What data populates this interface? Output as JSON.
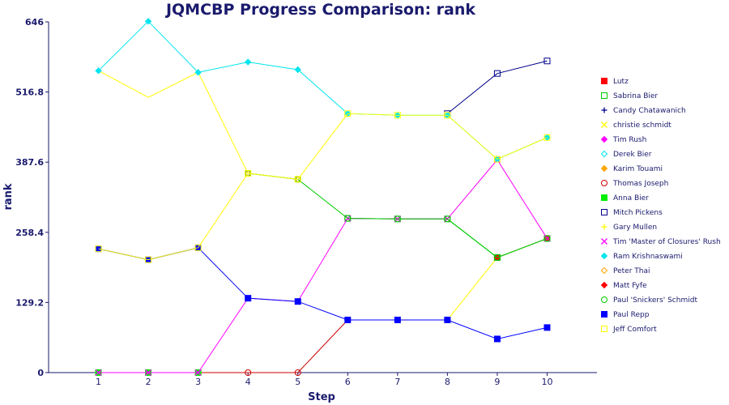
{
  "chart_data": {
    "type": "line",
    "title": "JQMCBP Progress Comparison: rank",
    "xlabel": "Step",
    "ylabel": "rank",
    "x": [
      1,
      2,
      3,
      4,
      5,
      6,
      7,
      8,
      9,
      10
    ],
    "xlim": [
      0,
      11
    ],
    "ylim": [
      0,
      646
    ],
    "yticks": [
      "0",
      "129.2",
      "258.4",
      "387.6",
      "516.8",
      "646"
    ],
    "legend_position": "right",
    "grid": false,
    "series": [
      {
        "name": "Lutz",
        "color": "#ff0000",
        "marker": "square-filled",
        "values": [
          null,
          null,
          null,
          null,
          null,
          null,
          null,
          null,
          212,
          247
        ]
      },
      {
        "name": "Sabrina Bier",
        "color": "#00cc00",
        "marker": "square-open",
        "values": [
          null,
          null,
          null,
          null,
          null,
          284,
          283,
          283,
          212,
          247
        ]
      },
      {
        "name": "Candy Chatawanich",
        "color": "#00008b",
        "marker": "plus",
        "values": [
          null,
          null,
          null,
          null,
          null,
          null,
          null,
          null,
          null,
          null
        ]
      },
      {
        "name": "christie schmidt",
        "color": "#ffff00",
        "marker": "x",
        "values": [
          null,
          null,
          null,
          null,
          null,
          null,
          null,
          null,
          null,
          null
        ]
      },
      {
        "name": "Tim Rush",
        "color": "#ff00ff",
        "marker": "diamond-filled",
        "values": [
          null,
          null,
          null,
          null,
          null,
          null,
          null,
          null,
          null,
          null
        ]
      },
      {
        "name": "Derek Bier",
        "color": "#00e5ee",
        "marker": "diamond-open",
        "values": [
          null,
          null,
          null,
          null,
          null,
          null,
          null,
          null,
          null,
          null
        ]
      },
      {
        "name": "Karim Touami",
        "color": "#ffa500",
        "marker": "diamond-filled",
        "values": [
          null,
          null,
          null,
          null,
          null,
          null,
          null,
          null,
          null,
          null
        ]
      },
      {
        "name": "Thomas Joseph",
        "color": "#cc0000",
        "marker": "circle-open",
        "values": [
          0,
          0,
          0,
          0,
          0,
          97,
          97,
          97,
          null,
          null
        ]
      },
      {
        "name": "Anna Bier",
        "color": "#00ee00",
        "marker": "square-filled",
        "values": [
          0,
          0,
          0,
          null,
          null,
          null,
          null,
          null,
          null,
          null
        ]
      },
      {
        "name": "Mitch Pickens",
        "color": "#00008b",
        "marker": "square-open",
        "values": [
          null,
          null,
          null,
          null,
          null,
          null,
          null,
          477,
          551,
          574
        ]
      },
      {
        "name": "Gary Mullen",
        "color": "#ffff00",
        "marker": "plus",
        "values": [
          null,
          null,
          null,
          null,
          null,
          null,
          null,
          null,
          null,
          null
        ]
      },
      {
        "name": "Tim 'Master of Closures' Rush",
        "color": "#ff00ff",
        "marker": "x",
        "values": [
          0,
          0,
          0,
          137,
          131,
          284,
          283,
          283,
          392,
          247
        ]
      },
      {
        "name": "Ram Krishnaswami",
        "color": "#00e5ee",
        "marker": "diamond-filled",
        "values": [
          556,
          647,
          553,
          572,
          558,
          477,
          474,
          474,
          393,
          433
        ]
      },
      {
        "name": "Peter Thai",
        "color": "#ffa500",
        "marker": "diamond-open",
        "values": [
          null,
          null,
          null,
          367,
          356,
          null,
          null,
          null,
          null,
          null
        ]
      },
      {
        "name": "Matt Fyfe",
        "color": "#ff0000",
        "marker": "diamond-filled",
        "values": [
          null,
          null,
          null,
          null,
          null,
          null,
          null,
          null,
          null,
          null
        ]
      },
      {
        "name": "Paul 'Snickers' Schmidt",
        "color": "#00cc00",
        "marker": "circle-open",
        "values": [
          null,
          null,
          null,
          367,
          356,
          284,
          283,
          283,
          212,
          247
        ]
      },
      {
        "name": "Paul Repp",
        "color": "#0000ff",
        "marker": "square-filled",
        "values": [
          228,
          208,
          230,
          137,
          131,
          97,
          97,
          97,
          62,
          83
        ]
      },
      {
        "name": "Jeff Comfort",
        "color": "#ffff00",
        "marker": "square-open",
        "values": [
          228,
          208,
          230,
          367,
          356,
          477,
          474,
          474,
          393,
          433
        ]
      }
    ],
    "extra_segments": [
      {
        "color": "#ffff00",
        "points": [
          [
            1,
            556
          ],
          [
            2,
            507
          ],
          [
            3,
            553
          ],
          [
            4,
            367
          ]
        ]
      },
      {
        "color": "#ffff00",
        "points": [
          [
            8,
            97
          ],
          [
            9,
            212
          ]
        ]
      },
      {
        "color": "#00008b",
        "points": [
          [
            1,
            228
          ],
          [
            2,
            208
          ],
          [
            3,
            230
          ]
        ]
      }
    ]
  }
}
